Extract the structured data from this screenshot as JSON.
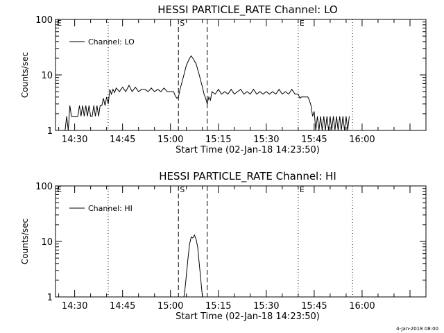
{
  "footer": {
    "stamp": "4-Jan-2018 08:00"
  },
  "chart_data": [
    {
      "type": "line",
      "title": "HESSI PARTICLE_RATE Channel: LO",
      "xlabel": "Start Time (02-Jan-18 14:23:50)",
      "ylabel": "Counts/sec",
      "yscale": "log",
      "ylim": [
        1,
        100
      ],
      "xlim_minutes": [
        24.0,
        140.0
      ],
      "x_tick_labels": [
        "14:30",
        "14:45",
        "15:00",
        "15:15",
        "15:30",
        "15:45",
        "16:00"
      ],
      "y_tick_labels": [
        "1",
        "10",
        "100"
      ],
      "legend": {
        "position": "top-left",
        "entries": [
          "Channel: LO"
        ]
      },
      "markers": [
        {
          "label": "E",
          "minute": 24.0,
          "style": "none"
        },
        {
          "label": "",
          "minute": 40.5,
          "style": "dotted"
        },
        {
          "label": "S",
          "minute": 62.5,
          "style": "dashed"
        },
        {
          "label": "",
          "minute": 71.5,
          "style": "dashed"
        },
        {
          "label": "E",
          "minute": 100.0,
          "style": "dotted"
        },
        {
          "label": "",
          "minute": 117.0,
          "style": "dotted"
        }
      ],
      "series": [
        {
          "name": "Channel: LO",
          "x": [
            27.0,
            27.5,
            28.0,
            28.5,
            29.0,
            29.5,
            30.0,
            30.5,
            31.0,
            31.5,
            32.0,
            32.5,
            33.0,
            33.5,
            34.0,
            34.5,
            35.0,
            35.5,
            36.0,
            36.5,
            37.0,
            37.5,
            38.0,
            38.5,
            39.0,
            39.5,
            40.0,
            40.5,
            41.0,
            41.5,
            42.0,
            42.5,
            43.0,
            44.0,
            45.0,
            46.0,
            47.0,
            48.0,
            49.0,
            50.0,
            51.0,
            52.0,
            53.0,
            54.0,
            55.0,
            56.0,
            57.0,
            58.0,
            59.0,
            60.0,
            61.0,
            61.5,
            62.0,
            62.5,
            63.0,
            64.0,
            65.0,
            66.0,
            66.5,
            67.0,
            68.0,
            69.0,
            70.0,
            70.5,
            71.0,
            71.5,
            72.0,
            72.5,
            73.0,
            74.0,
            75.0,
            76.0,
            77.0,
            78.0,
            79.0,
            80.0,
            81.0,
            82.0,
            83.0,
            84.0,
            85.0,
            86.0,
            87.0,
            88.0,
            89.0,
            90.0,
            91.0,
            92.0,
            93.0,
            94.0,
            95.0,
            96.0,
            97.0,
            98.0,
            99.0,
            100.0,
            100.5,
            101.0,
            102.0,
            103.0,
            103.5,
            104.0,
            104.5,
            105.0,
            105.5,
            106.0,
            106.5,
            107.0,
            107.5,
            108.0,
            108.5,
            109.0,
            109.5,
            110.0,
            110.5,
            111.0,
            111.5,
            112.0,
            112.5,
            113.0,
            113.5,
            114.0,
            114.5,
            115.0,
            115.5,
            116.0
          ],
          "y": [
            1.0,
            1.8,
            1.0,
            2.8,
            1.8,
            1.8,
            1.8,
            1.8,
            1.8,
            2.8,
            1.8,
            2.8,
            1.8,
            2.8,
            1.8,
            2.8,
            1.8,
            1.8,
            2.8,
            1.8,
            2.8,
            1.8,
            2.8,
            2.8,
            3.8,
            2.8,
            4.0,
            3.0,
            5.5,
            4.5,
            5.5,
            4.8,
            5.8,
            5.0,
            6.0,
            5.0,
            6.5,
            5.0,
            6.0,
            5.0,
            5.5,
            5.5,
            5.0,
            5.8,
            5.0,
            5.5,
            5.0,
            5.8,
            5.0,
            5.0,
            5.0,
            4.2,
            3.8,
            4.0,
            5.5,
            9.0,
            15.0,
            20.0,
            22.0,
            20.0,
            16.0,
            10.0,
            6.0,
            4.5,
            3.8,
            3.0,
            4.0,
            3.5,
            5.0,
            4.5,
            5.5,
            4.5,
            5.0,
            4.5,
            5.5,
            4.5,
            5.0,
            5.5,
            4.5,
            5.0,
            4.5,
            5.5,
            4.5,
            5.0,
            4.5,
            5.0,
            4.5,
            5.0,
            4.5,
            5.5,
            4.5,
            5.0,
            4.5,
            5.5,
            4.5,
            4.5,
            3.8,
            4.0,
            4.0,
            4.0,
            3.5,
            2.8,
            1.8,
            2.2,
            1.0,
            1.8,
            1.0,
            1.8,
            1.0,
            1.8,
            1.0,
            1.8,
            1.0,
            1.8,
            1.0,
            1.8,
            1.0,
            1.8,
            1.0,
            1.8,
            1.0,
            1.8,
            1.0,
            1.8,
            1.0,
            1.8
          ]
        }
      ]
    },
    {
      "type": "line",
      "title": "HESSI PARTICLE_RATE Channel: HI",
      "xlabel": "Start Time (02-Jan-18 14:23:50)",
      "ylabel": "Counts/sec",
      "yscale": "log",
      "ylim": [
        1,
        100
      ],
      "xlim_minutes": [
        24.0,
        140.0
      ],
      "x_tick_labels": [
        "14:30",
        "14:45",
        "15:00",
        "15:15",
        "15:30",
        "15:45",
        "16:00"
      ],
      "y_tick_labels": [
        "1",
        "10",
        "100"
      ],
      "legend": {
        "position": "top-left",
        "entries": [
          "Channel: HI"
        ]
      },
      "markers": [
        {
          "label": "E",
          "minute": 24.0,
          "style": "none"
        },
        {
          "label": "",
          "minute": 40.5,
          "style": "dotted"
        },
        {
          "label": "S",
          "minute": 62.5,
          "style": "dashed"
        },
        {
          "label": "",
          "minute": 71.5,
          "style": "dashed"
        },
        {
          "label": "E",
          "minute": 100.0,
          "style": "dotted"
        },
        {
          "label": "",
          "minute": 117.0,
          "style": "dotted"
        }
      ],
      "series": [
        {
          "name": "Channel: HI",
          "x": [
            64.2,
            64.5,
            65.0,
            65.5,
            66.0,
            66.5,
            67.0,
            67.5,
            68.0,
            68.5,
            69.0,
            69.5,
            70.0
          ],
          "y": [
            1.0,
            1.3,
            2.5,
            5.0,
            9.0,
            12.0,
            11.5,
            13.0,
            11.0,
            8.0,
            4.0,
            2.0,
            1.0
          ]
        }
      ]
    }
  ]
}
